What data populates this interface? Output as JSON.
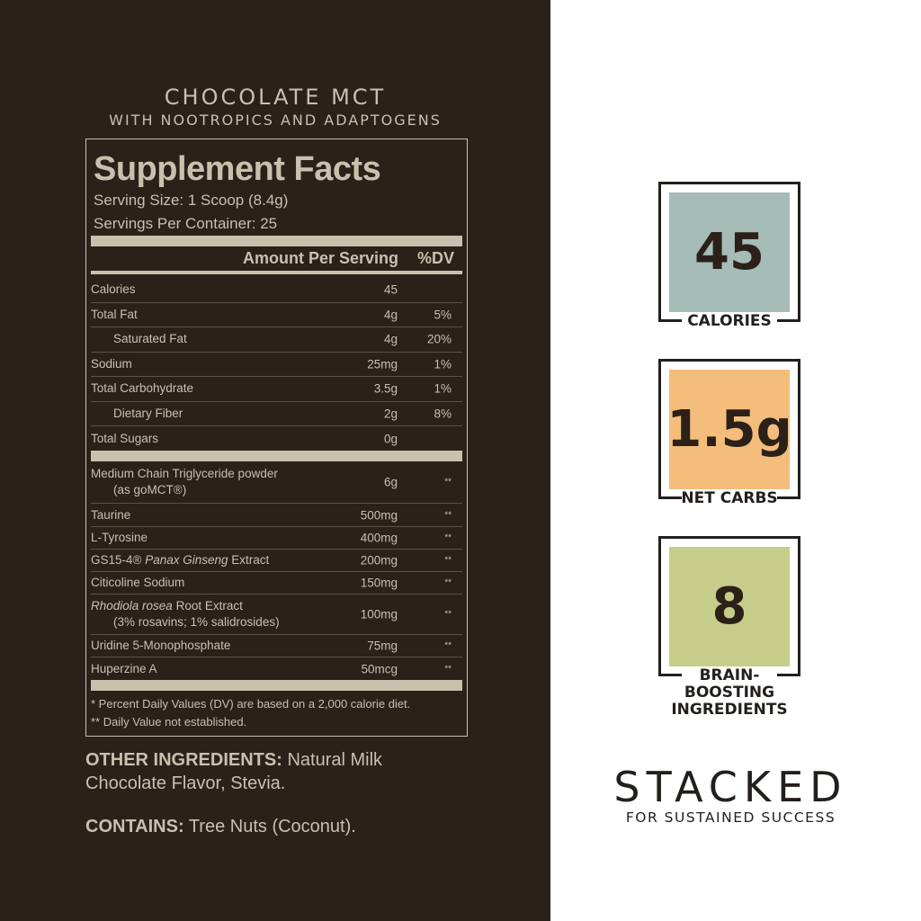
{
  "product": {
    "title": "CHOCOLATE MCT",
    "subtitle": "WITH NOOTROPICS AND ADAPTOGENS"
  },
  "facts": {
    "heading": "Supplement Facts",
    "serving_size": "Serving Size: 1 Scoop (8.4g)",
    "servings_per_container": "Servings Per Container: 25",
    "amount_header": "Amount Per Serving",
    "dv_header": "%DV",
    "nutrients": [
      {
        "name": "Calories",
        "amount": "45",
        "dv": ""
      },
      {
        "name": "Total Fat",
        "amount": "4g",
        "dv": "5%"
      },
      {
        "name": "Saturated Fat",
        "amount": "4g",
        "dv": "20%"
      },
      {
        "name": "Sodium",
        "amount": "25mg",
        "dv": "1%"
      },
      {
        "name": "Total Carbohydrate",
        "amount": "3.5g",
        "dv": "1%"
      },
      {
        "name": "Dietary Fiber",
        "amount": "2g",
        "dv": "8%"
      },
      {
        "name": "Total Sugars",
        "amount": "0g",
        "dv": ""
      }
    ],
    "ingredients": [
      {
        "pre": "Medium Chain Triglyceride powder",
        "italic": "",
        "post": "",
        "sub": "(as goMCT®)",
        "amount": "6g",
        "dv": "**"
      },
      {
        "pre": "Taurine",
        "italic": "",
        "post": "",
        "sub": "",
        "amount": "500mg",
        "dv": "**"
      },
      {
        "pre": "L-Tyrosine",
        "italic": "",
        "post": "",
        "sub": "",
        "amount": "400mg",
        "dv": "**"
      },
      {
        "pre": "GS15-4® ",
        "italic": "Panax Ginseng",
        "post": " Extract",
        "sub": "",
        "amount": "200mg",
        "dv": "**"
      },
      {
        "pre": "Citicoline Sodium",
        "italic": "",
        "post": "",
        "sub": "",
        "amount": "150mg",
        "dv": "**"
      },
      {
        "pre": "",
        "italic": "Rhodiola rosea",
        "post": " Root Extract",
        "sub": "(3% rosavins; 1% salidrosides)",
        "amount": "100mg",
        "dv": "**"
      },
      {
        "pre": "Uridine 5-Monophosphate",
        "italic": "",
        "post": "",
        "sub": "",
        "amount": "75mg",
        "dv": "**"
      },
      {
        "pre": "Huperzine A",
        "italic": "",
        "post": "",
        "sub": "",
        "amount": "50mcg",
        "dv": "**"
      }
    ],
    "footnote1": "* Percent Daily Values (DV) are based on a 2,000 calorie diet.",
    "footnote2": "** Daily Value not established."
  },
  "other": {
    "label": "OTHER INGREDIENTS:",
    "text": " Natural Milk Chocolate Flavor, Stevia."
  },
  "contains": {
    "label": "CONTAINS:",
    "text": " Tree Nuts (Coconut)."
  },
  "highlights": [
    {
      "value": "45",
      "label": "CALORIES",
      "color": "#a6bcb6"
    },
    {
      "value": "1.5g",
      "label": "NET CARBS",
      "color": "#f4bd7b"
    },
    {
      "value": "8",
      "label": "BRAIN-\nBOOSTING\nINGREDIENTS",
      "color": "#c6cd8a"
    }
  ],
  "tagline": {
    "title": "STACKED",
    "subtitle": "FOR SUSTAINED SUCCESS"
  }
}
